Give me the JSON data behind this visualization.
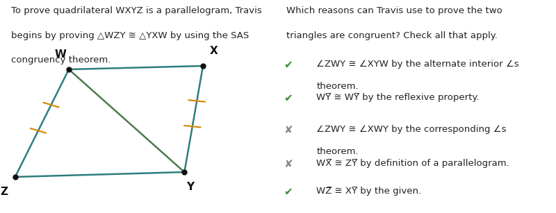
{
  "background_color": "#ffffff",
  "left_text_lines": [
    "To prove quadrilateral WXYZ is a parallelogram, Travis",
    "begins by proving △WZY ≅ △YXW by using the SAS",
    "congruency theorem."
  ],
  "right_title": "Which reasons can Travis use to prove the two\ntriangles are congruent? Check all that apply.",
  "items": [
    {
      "symbol": "✔",
      "symbol_color": "#3a8a3a",
      "text_parts": [
        [
          "∠ZWY ≅ ∠XYW by the alternate interior ∠s",
          false
        ],
        [
          "theorem.",
          false
        ]
      ]
    },
    {
      "symbol": "✔",
      "symbol_color": "#3a8a3a",
      "text_parts": [
        [
          "WY̅ ≅ WY̅ by the reflexive property.",
          false
        ]
      ]
    },
    {
      "symbol": "✘",
      "symbol_color": "#888888",
      "text_parts": [
        [
          "∠ZWY ≅ ∠XWY by the corresponding ∠s",
          false
        ],
        [
          "theorem.",
          false
        ]
      ]
    },
    {
      "symbol": "✘",
      "symbol_color": "#888888",
      "text_parts": [
        [
          "WX̅ ≅ ZY̅ by definition of a parallelogram.",
          false
        ]
      ]
    },
    {
      "symbol": "✔",
      "symbol_color": "#3a8a3a",
      "text_parts": [
        [
          "WZ̅ ≅ XY̅ by the given.",
          false
        ]
      ]
    }
  ],
  "quad_color": "#2e7d7d",
  "diag_color": "#4a7a4a",
  "tick_color": "#d4890a",
  "vertex_label_fontsize": 11
}
